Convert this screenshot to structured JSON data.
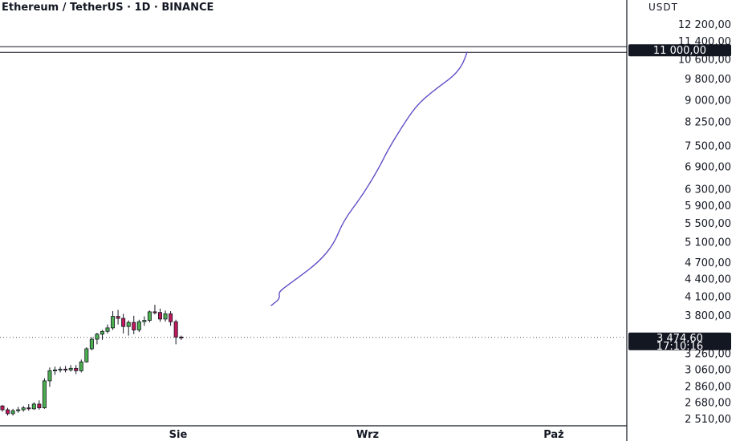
{
  "header": {
    "title": "Ethereum / TetherUS · 1D · BINANCE"
  },
  "price_axis": {
    "unit": "USDT",
    "ticks": [
      "12 200,00",
      "11 400,00",
      "10 600,00",
      "9 800,00",
      "9 000,00",
      "8 250,00",
      "7 500,00",
      "6 900,00",
      "6 300,00",
      "5 900,00",
      "5 500,00",
      "5 100,00",
      "4 700,00",
      "4 400,00",
      "4 100,00",
      "3 800,00",
      "3 260,00",
      "3 060,00",
      "2 860,00",
      "2 680,00",
      "2 510,00"
    ],
    "tick_values": [
      12200,
      11400,
      10600,
      9800,
      9000,
      8250,
      7500,
      6900,
      6300,
      5900,
      5500,
      5100,
      4700,
      4400,
      4100,
      3800,
      3260,
      3060,
      2860,
      2680,
      2510
    ],
    "scale": "log"
  },
  "time_axis": {
    "ticks": [
      "Sie",
      "Wrz",
      "Paż"
    ]
  },
  "level_tag": {
    "label": "11 000,00",
    "value": 11000
  },
  "last_price_tag": {
    "price": "3 474,60",
    "countdown": "17:10:16",
    "value": 3474.6
  },
  "colors": {
    "up": "#26a69a",
    "up_fill": "#4caf50",
    "down": "#ef5350",
    "down_fill": "#c2185b",
    "drawing": "#5e4fc4",
    "tag_bg": "#131722",
    "axis_line": "#131722"
  },
  "chart_data": {
    "type": "candlestick",
    "title": "Ethereum / TetherUS · 1D · BINANCE",
    "y_unit": "USDT",
    "y_scale": "log",
    "ylim": [
      2450,
      13000
    ],
    "x_ticks": [
      "Sie",
      "Wrz",
      "Paż"
    ],
    "horizontal_level": 11000,
    "last_price": 3474.6,
    "candles": [
      {
        "o": 2640,
        "h": 2650,
        "l": 2580,
        "c": 2600
      },
      {
        "o": 2600,
        "h": 2620,
        "l": 2540,
        "c": 2560
      },
      {
        "o": 2560,
        "h": 2610,
        "l": 2540,
        "c": 2590
      },
      {
        "o": 2590,
        "h": 2630,
        "l": 2570,
        "c": 2600
      },
      {
        "o": 2600,
        "h": 2640,
        "l": 2580,
        "c": 2620
      },
      {
        "o": 2620,
        "h": 2660,
        "l": 2590,
        "c": 2610
      },
      {
        "o": 2610,
        "h": 2680,
        "l": 2600,
        "c": 2660
      },
      {
        "o": 2660,
        "h": 2700,
        "l": 2600,
        "c": 2620
      },
      {
        "o": 2620,
        "h": 2950,
        "l": 2610,
        "c": 2920
      },
      {
        "o": 2920,
        "h": 3080,
        "l": 2850,
        "c": 3040
      },
      {
        "o": 3040,
        "h": 3090,
        "l": 2990,
        "c": 3050
      },
      {
        "o": 3050,
        "h": 3090,
        "l": 3020,
        "c": 3060
      },
      {
        "o": 3060,
        "h": 3100,
        "l": 3020,
        "c": 3050
      },
      {
        "o": 3050,
        "h": 3110,
        "l": 3030,
        "c": 3070
      },
      {
        "o": 3070,
        "h": 3110,
        "l": 3000,
        "c": 3040
      },
      {
        "o": 3040,
        "h": 3180,
        "l": 3020,
        "c": 3150
      },
      {
        "o": 3150,
        "h": 3340,
        "l": 3140,
        "c": 3320
      },
      {
        "o": 3320,
        "h": 3480,
        "l": 3300,
        "c": 3450
      },
      {
        "o": 3450,
        "h": 3540,
        "l": 3380,
        "c": 3520
      },
      {
        "o": 3520,
        "h": 3580,
        "l": 3440,
        "c": 3560
      },
      {
        "o": 3560,
        "h": 3660,
        "l": 3530,
        "c": 3610
      },
      {
        "o": 3610,
        "h": 3860,
        "l": 3580,
        "c": 3780
      },
      {
        "o": 3780,
        "h": 3880,
        "l": 3660,
        "c": 3750
      },
      {
        "o": 3750,
        "h": 3820,
        "l": 3530,
        "c": 3630
      },
      {
        "o": 3630,
        "h": 3720,
        "l": 3500,
        "c": 3690
      },
      {
        "o": 3690,
        "h": 3790,
        "l": 3520,
        "c": 3580
      },
      {
        "o": 3580,
        "h": 3730,
        "l": 3550,
        "c": 3700
      },
      {
        "o": 3700,
        "h": 3780,
        "l": 3640,
        "c": 3720
      },
      {
        "o": 3720,
        "h": 3870,
        "l": 3690,
        "c": 3850
      },
      {
        "o": 3850,
        "h": 3960,
        "l": 3810,
        "c": 3840
      },
      {
        "o": 3840,
        "h": 3900,
        "l": 3700,
        "c": 3740
      },
      {
        "o": 3740,
        "h": 3870,
        "l": 3700,
        "c": 3820
      },
      {
        "o": 3820,
        "h": 3860,
        "l": 3640,
        "c": 3700
      },
      {
        "o": 3700,
        "h": 3730,
        "l": 3380,
        "c": 3480
      },
      {
        "o": 3480,
        "h": 3500,
        "l": 3440,
        "c": 3474.6
      }
    ],
    "drawing_path_prices": [
      [
        3950,
        4060,
        4160,
        4260,
        4420,
        4700,
        5050,
        5550,
        6150,
        6850,
        7350,
        8050,
        8850,
        9450,
        9900,
        10350,
        10900
      ]
    ]
  }
}
